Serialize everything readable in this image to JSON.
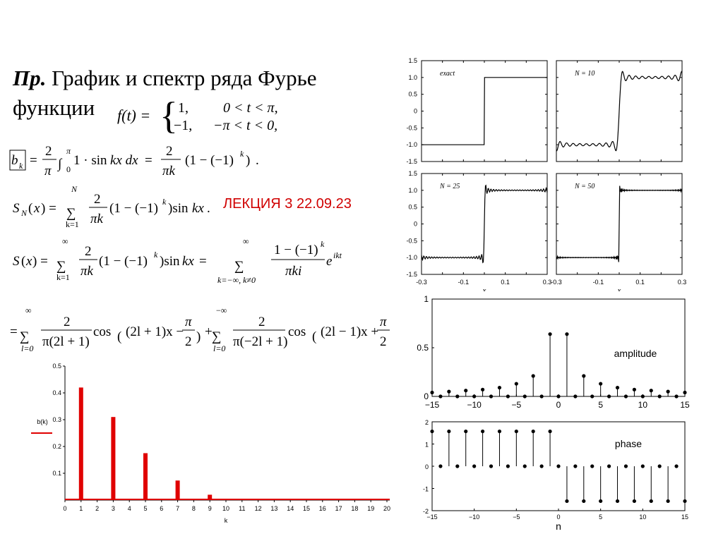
{
  "slide": {
    "heading_bold": "Пр.",
    "heading_rest": "График и спектр ряда Фурье",
    "heading_line2": "функции",
    "lecture_note": "ЛЕКЦИЯ 3  22.09.23",
    "piecewise": {
      "lhs": "f(t) =",
      "v1": "1,",
      "c1": "0 < t < π,",
      "v2": "−1,",
      "c2": "−π < t < 0,"
    }
  },
  "chart_data": [
    {
      "type": "line",
      "title": "exact",
      "x": [
        -0.3,
        -0.001,
        0.001,
        0.3
      ],
      "y": [
        -1,
        -1,
        1,
        1
      ],
      "xlim": [
        -0.3,
        0.3
      ],
      "ylim": [
        -1.5,
        1.5
      ],
      "yticks": [
        "1.5",
        "1.0",
        "0.5",
        "0",
        "-0.5",
        "-1.0",
        "-1.5"
      ]
    },
    {
      "type": "line",
      "title": "N = 10",
      "terms": 10,
      "xlim": [
        -0.3,
        0.3
      ],
      "ylim": [
        -1.5,
        1.5
      ]
    },
    {
      "type": "line",
      "title": "N = 25",
      "terms": 25,
      "xlim": [
        -0.3,
        0.3
      ],
      "ylim": [
        -1.5,
        1.5
      ],
      "xticks": [
        "-0.3",
        "-0.1",
        "0.1",
        "0.3"
      ],
      "xlabel": "x"
    },
    {
      "type": "line",
      "title": "N = 50",
      "terms": 50,
      "xlim": [
        -0.3,
        0.3
      ],
      "ylim": [
        -1.5,
        1.5
      ],
      "xticks": [
        "-0.3",
        "-0.1",
        "0.1",
        "0.3"
      ],
      "xlabel": "x"
    },
    {
      "type": "bar",
      "xlabel": "k",
      "ylabel": "b(k)",
      "categories": [
        "0",
        "1",
        "2",
        "3",
        "4",
        "5",
        "6",
        "7",
        "8",
        "9",
        "10",
        "11",
        "12",
        "13",
        "14",
        "15",
        "16",
        "17",
        "18",
        "19",
        "20"
      ],
      "values": [
        0,
        0.42,
        0,
        0.31,
        0,
        0.175,
        0,
        0.073,
        0,
        0.02,
        0,
        0,
        0,
        0,
        0,
        0,
        0,
        0,
        0,
        0,
        0
      ],
      "ylim": [
        0,
        0.5
      ],
      "yticks": [
        "0.5",
        "0.4",
        "0.3",
        "0.2",
        "0.1"
      ]
    },
    {
      "type": "scatter",
      "title": "amplitude",
      "x": [
        -15,
        -14,
        -13,
        -12,
        -11,
        -10,
        -9,
        -8,
        -7,
        -6,
        -5,
        -4,
        -3,
        -2,
        -1,
        0,
        1,
        2,
        3,
        4,
        5,
        6,
        7,
        8,
        9,
        10,
        11,
        12,
        13,
        14,
        15
      ],
      "values": [
        0.04,
        0,
        0.05,
        0,
        0.06,
        0,
        0.07,
        0,
        0.09,
        0,
        0.13,
        0,
        0.21,
        0,
        0.64,
        0,
        0.64,
        0,
        0.21,
        0,
        0.13,
        0,
        0.09,
        0,
        0.07,
        0,
        0.06,
        0,
        0.05,
        0,
        0.04
      ],
      "ylim": [
        0,
        1
      ],
      "yticks": [
        "1",
        "0.5",
        "0"
      ],
      "xticks": [
        "−15",
        "−10",
        "−5",
        "0",
        "5",
        "10",
        "15"
      ]
    },
    {
      "type": "scatter",
      "title": "phase",
      "xlabel": "n",
      "x": [
        -15,
        -14,
        -13,
        -12,
        -11,
        -10,
        -9,
        -8,
        -7,
        -6,
        -5,
        -4,
        -3,
        -2,
        -1,
        0,
        1,
        2,
        3,
        4,
        5,
        6,
        7,
        8,
        9,
        10,
        11,
        12,
        13,
        14,
        15
      ],
      "values": [
        1.57,
        0,
        1.57,
        0,
        1.57,
        0,
        1.57,
        0,
        1.57,
        0,
        1.57,
        0,
        1.57,
        0,
        1.57,
        0,
        -1.57,
        0,
        -1.57,
        0,
        -1.57,
        0,
        -1.57,
        0,
        -1.57,
        0,
        -1.57,
        0,
        -1.57,
        0,
        -1.57
      ],
      "ylim": [
        -2,
        2
      ],
      "yticks": [
        "2",
        "1",
        "0",
        "-1",
        "-2"
      ],
      "xticks": [
        "−15",
        "−10",
        "−5",
        "0",
        "5",
        "10",
        "15"
      ]
    }
  ]
}
